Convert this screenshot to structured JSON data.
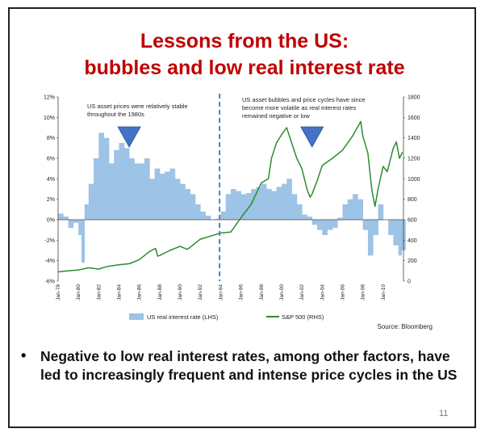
{
  "slide": {
    "title_line1": "Lessons from the US:",
    "title_line2": "bubbles and low real interest rate",
    "bullet": "Negative to low real interest rates, among other factors, have led to increasingly frequent and intense price cycles in the US",
    "page_number": "11",
    "title_color": "#c00000"
  },
  "chart_data": {
    "type": "bar+line",
    "x_tick_labels": [
      "Jan-78",
      "Jan-80",
      "Jan-82",
      "Jan-84",
      "Jan-86",
      "Jan-88",
      "Jan-90",
      "Jan-92",
      "Jan-94",
      "Jan-96",
      "Jan-98",
      "Jan-00",
      "Jan-02",
      "Jan-04",
      "Jan-06",
      "Jan-08",
      "Jan-10"
    ],
    "x_range": [
      1978.0,
      2012.0
    ],
    "left_axis": {
      "ticks": [
        "-6%",
        "-4%",
        "-2%",
        "0%",
        "2%",
        "4%",
        "6%",
        "8%",
        "10%",
        "12%"
      ],
      "range": [
        -6,
        12
      ]
    },
    "right_axis": {
      "ticks": [
        "0",
        "200",
        "400",
        "600",
        "800",
        "1000",
        "1200",
        "1400",
        "1600",
        "1800"
      ],
      "range": [
        0,
        1800
      ]
    },
    "series": [
      {
        "name": "US real interest rate (LHS)",
        "kind": "bar",
        "axis": "left",
        "color": "#9dc3e6",
        "points": [
          [
            1978.0,
            0.6
          ],
          [
            1978.5,
            0.3
          ],
          [
            1979.0,
            -0.8
          ],
          [
            1979.5,
            -0.3
          ],
          [
            1980.0,
            -1.5
          ],
          [
            1980.3,
            -4.2
          ],
          [
            1980.6,
            1.5
          ],
          [
            1981.0,
            3.5
          ],
          [
            1981.5,
            6.0
          ],
          [
            1982.0,
            8.5
          ],
          [
            1982.5,
            8.0
          ],
          [
            1983.0,
            5.5
          ],
          [
            1983.5,
            6.8
          ],
          [
            1984.0,
            7.5
          ],
          [
            1984.5,
            7.0
          ],
          [
            1985.0,
            6.0
          ],
          [
            1985.5,
            5.5
          ],
          [
            1986.0,
            5.5
          ],
          [
            1986.5,
            6.0
          ],
          [
            1987.0,
            4.0
          ],
          [
            1987.5,
            5.0
          ],
          [
            1988.0,
            4.5
          ],
          [
            1988.5,
            4.7
          ],
          [
            1989.0,
            5.0
          ],
          [
            1989.5,
            4.0
          ],
          [
            1990.0,
            3.5
          ],
          [
            1990.5,
            3.0
          ],
          [
            1991.0,
            2.5
          ],
          [
            1991.5,
            1.5
          ],
          [
            1992.0,
            0.8
          ],
          [
            1992.5,
            0.4
          ],
          [
            1993.0,
            0.0
          ],
          [
            1993.5,
            0.1
          ],
          [
            1994.0,
            0.8
          ],
          [
            1994.5,
            2.5
          ],
          [
            1995.0,
            3.0
          ],
          [
            1995.5,
            2.8
          ],
          [
            1996.0,
            2.5
          ],
          [
            1996.5,
            2.6
          ],
          [
            1997.0,
            3.0
          ],
          [
            1997.5,
            3.2
          ],
          [
            1998.0,
            3.5
          ],
          [
            1998.5,
            3.0
          ],
          [
            1999.0,
            2.8
          ],
          [
            1999.5,
            3.2
          ],
          [
            2000.0,
            3.5
          ],
          [
            2000.5,
            4.0
          ],
          [
            2001.0,
            2.5
          ],
          [
            2001.5,
            1.5
          ],
          [
            2002.0,
            0.5
          ],
          [
            2002.5,
            0.3
          ],
          [
            2003.0,
            -0.5
          ],
          [
            2003.5,
            -1.0
          ],
          [
            2004.0,
            -1.5
          ],
          [
            2004.5,
            -1.0
          ],
          [
            2005.0,
            -0.8
          ],
          [
            2005.5,
            0.2
          ],
          [
            2006.0,
            1.5
          ],
          [
            2006.5,
            2.0
          ],
          [
            2007.0,
            2.5
          ],
          [
            2007.5,
            2.0
          ],
          [
            2008.0,
            -1.0
          ],
          [
            2008.5,
            -3.5
          ],
          [
            2009.0,
            -1.5
          ],
          [
            2009.5,
            1.5
          ],
          [
            2010.0,
            0.0
          ],
          [
            2010.5,
            -1.5
          ],
          [
            2011.0,
            -2.5
          ],
          [
            2011.5,
            -3.5
          ],
          [
            2011.8,
            -3.0
          ]
        ]
      },
      {
        "name": "S&P 500 (RHS)",
        "kind": "line",
        "axis": "right",
        "color": "#2e8b2e",
        "points": [
          [
            1978.0,
            90
          ],
          [
            1979.0,
            100
          ],
          [
            1980.0,
            108
          ],
          [
            1981.0,
            130
          ],
          [
            1982.0,
            118
          ],
          [
            1982.7,
            140
          ],
          [
            1983.0,
            145
          ],
          [
            1984.0,
            160
          ],
          [
            1985.0,
            170
          ],
          [
            1986.0,
            210
          ],
          [
            1987.0,
            290
          ],
          [
            1987.6,
            320
          ],
          [
            1987.8,
            245
          ],
          [
            1988.0,
            250
          ],
          [
            1989.0,
            300
          ],
          [
            1990.0,
            340
          ],
          [
            1990.7,
            310
          ],
          [
            1991.0,
            330
          ],
          [
            1992.0,
            410
          ],
          [
            1993.0,
            440
          ],
          [
            1994.0,
            470
          ],
          [
            1995.0,
            480
          ],
          [
            1996.0,
            620
          ],
          [
            1997.0,
            750
          ],
          [
            1998.0,
            960
          ],
          [
            1998.7,
            1000
          ],
          [
            1999.0,
            1200
          ],
          [
            1999.5,
            1350
          ],
          [
            2000.0,
            1430
          ],
          [
            2000.5,
            1500
          ],
          [
            2001.0,
            1350
          ],
          [
            2001.5,
            1200
          ],
          [
            2002.0,
            1100
          ],
          [
            2002.5,
            900
          ],
          [
            2002.8,
            820
          ],
          [
            2003.0,
            850
          ],
          [
            2003.5,
            980
          ],
          [
            2004.0,
            1130
          ],
          [
            2005.0,
            1200
          ],
          [
            2006.0,
            1280
          ],
          [
            2007.0,
            1420
          ],
          [
            2007.8,
            1560
          ],
          [
            2008.0,
            1420
          ],
          [
            2008.5,
            1250
          ],
          [
            2008.9,
            880
          ],
          [
            2009.2,
            730
          ],
          [
            2009.5,
            900
          ],
          [
            2010.0,
            1120
          ],
          [
            2010.4,
            1070
          ],
          [
            2011.0,
            1300
          ],
          [
            2011.3,
            1360
          ],
          [
            2011.6,
            1200
          ],
          [
            2011.9,
            1260
          ]
        ]
      }
    ],
    "divider_x": 1993.9,
    "annotations": [
      "US asset prices were relatively stable throughout the 1980s",
      "US asset bubbles and price cycles have since become more volatile as real interest rates remained negative or low"
    ],
    "marker_x": [
      1985.0,
      2003.0
    ],
    "source": "Source: Bloomberg",
    "legend": [
      "US real interest rate (LHS)",
      "S&P 500 (RHS)"
    ],
    "legend_position": "bottom",
    "grid": false
  }
}
